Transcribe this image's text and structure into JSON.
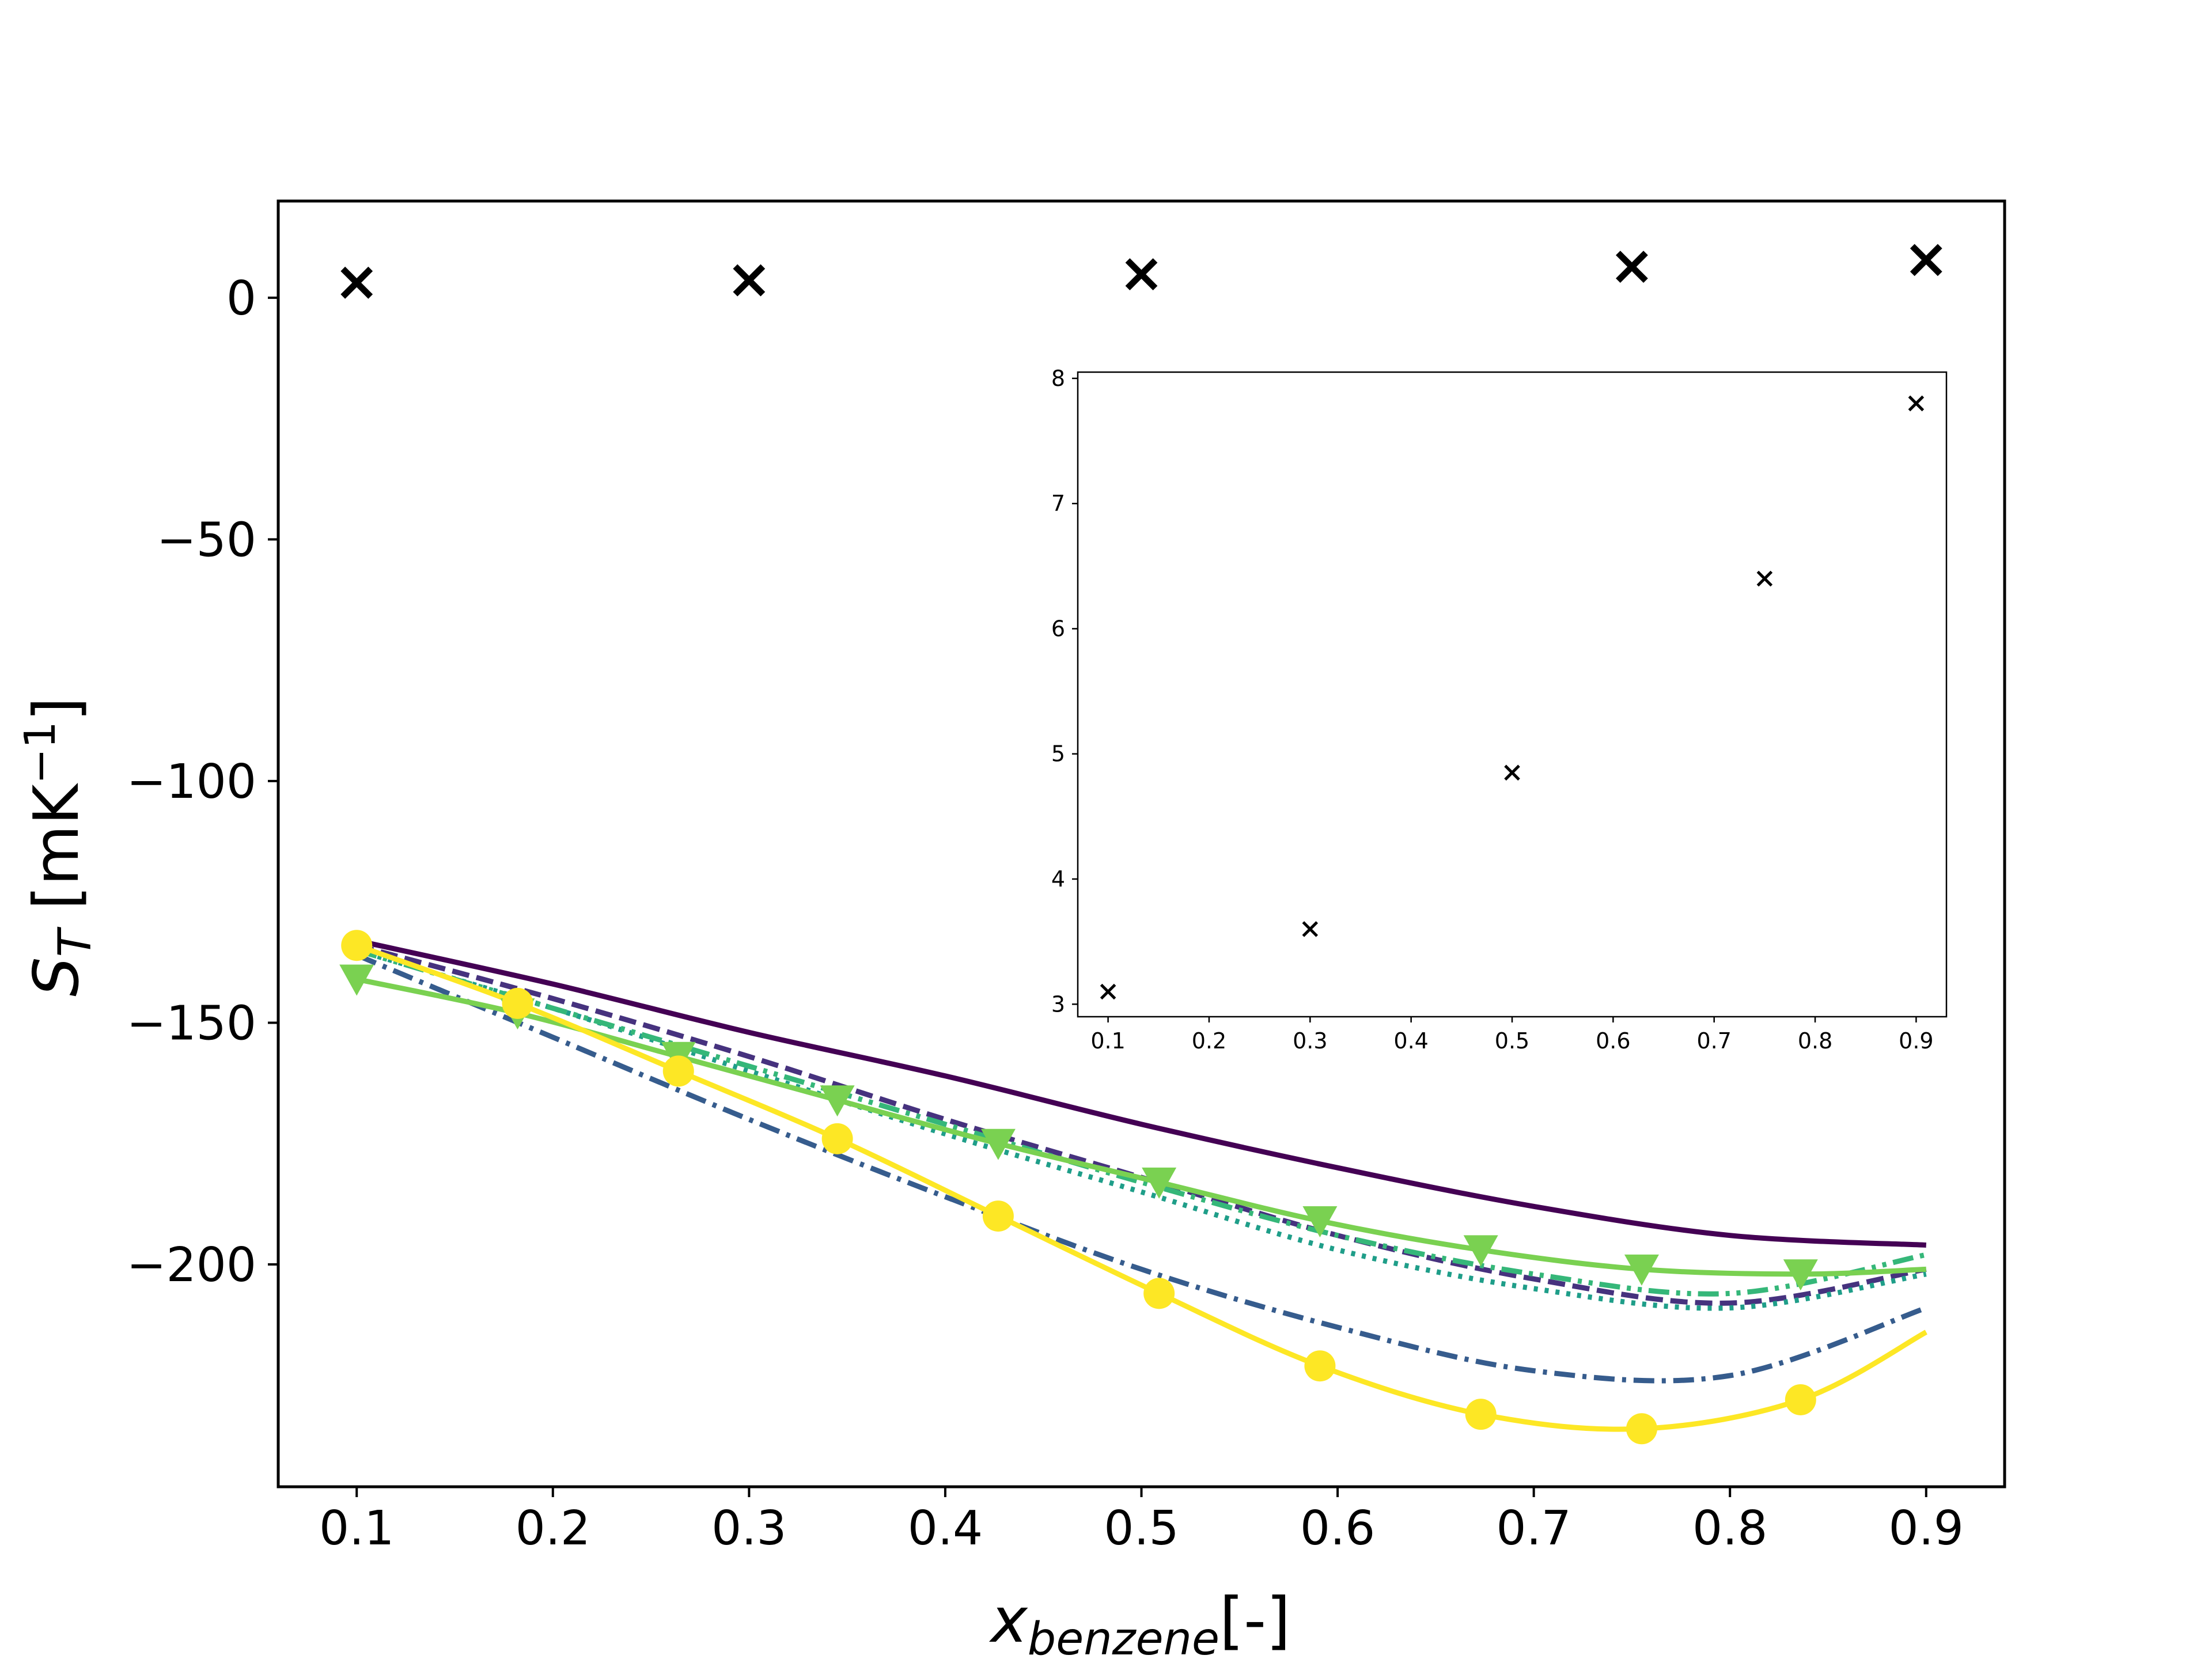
{
  "chart_data": [
    {
      "type": "line",
      "title": "",
      "xlabel_main": "x",
      "xlabel_sub": "benzene",
      "xlabel_tail": "[-]",
      "ylabel_main": "S",
      "ylabel_sub": "T",
      "ylabel_tail": " [mK",
      "ylabel_sup": "−1",
      "ylabel_close": "]",
      "xlim": [
        0.06,
        0.94
      ],
      "ylim": [
        -246,
        20
      ],
      "xticks": [
        0.1,
        0.2,
        0.3,
        0.4,
        0.5,
        0.6,
        0.7,
        0.8,
        0.9
      ],
      "xtick_labels": [
        "0.1",
        "0.2",
        "0.3",
        "0.4",
        "0.5",
        "0.6",
        "0.7",
        "0.8",
        "0.9"
      ],
      "yticks": [
        0,
        -50,
        -100,
        -150,
        -200
      ],
      "ytick_labels": [
        "0",
        "−50",
        "−100",
        "−150",
        "−200"
      ],
      "grid": false,
      "series": [
        {
          "style": "solid",
          "color": "#440154",
          "marker": "none",
          "x": [
            0.1,
            0.2,
            0.3,
            0.4,
            0.5,
            0.6,
            0.7,
            0.8,
            0.9
          ],
          "y": [
            -133,
            -142,
            -152,
            -161,
            -171,
            -180,
            -188,
            -194,
            -196
          ]
        },
        {
          "style": "dashed",
          "color": "#46327e",
          "marker": "none",
          "x": [
            0.1,
            0.2,
            0.3,
            0.4,
            0.5,
            0.6,
            0.7,
            0.8,
            0.9
          ],
          "y": [
            -134,
            -145,
            -157,
            -170,
            -182,
            -194,
            -203,
            -208,
            -201
          ]
        },
        {
          "style": "dashdot",
          "color": "#365c8d",
          "marker": "none",
          "x": [
            0.1,
            0.2,
            0.3,
            0.4,
            0.5,
            0.6,
            0.7,
            0.8,
            0.9
          ],
          "y": [
            -136,
            -153,
            -170,
            -186,
            -201,
            -213,
            -222,
            -223,
            -209
          ]
        },
        {
          "style": "dotted",
          "color": "#1f9e89",
          "marker": "none",
          "x": [
            0.1,
            0.2,
            0.3,
            0.4,
            0.5,
            0.6,
            0.7,
            0.8,
            0.9
          ],
          "y": [
            -135,
            -147,
            -160,
            -173,
            -185,
            -197,
            -205,
            -209,
            -202
          ]
        },
        {
          "style": "dashdotdot",
          "color": "#35b779",
          "marker": "none",
          "x": [
            0.1,
            0.2,
            0.3,
            0.4,
            0.5,
            0.6,
            0.7,
            0.8,
            0.9
          ],
          "y": [
            -135,
            -147,
            -159,
            -171,
            -183,
            -194,
            -202,
            -206,
            -198
          ]
        },
        {
          "style": "solid",
          "color": "#7ad151",
          "marker": "triangle-down",
          "x": [
            0.1,
            0.182,
            0.264,
            0.345,
            0.427,
            0.509,
            0.591,
            0.673,
            0.755,
            0.836,
            0.9
          ],
          "y": [
            -141,
            -148,
            -157,
            -166,
            -175,
            -183,
            -191,
            -197,
            -201,
            -202,
            -201
          ],
          "marker_x": [
            0.1,
            0.182,
            0.264,
            0.345,
            0.427,
            0.509,
            0.591,
            0.673,
            0.755,
            0.836
          ],
          "marker_y": [
            -141,
            -148,
            -157,
            -166,
            -175,
            -183,
            -191,
            -197,
            -201,
            -202
          ]
        },
        {
          "style": "solid",
          "color": "#fde725",
          "marker": "circle",
          "x": [
            0.1,
            0.182,
            0.264,
            0.345,
            0.427,
            0.509,
            0.591,
            0.673,
            0.755,
            0.836,
            0.9
          ],
          "y": [
            -134,
            -146,
            -160,
            -174,
            -190,
            -206,
            -221,
            -231,
            -234,
            -228,
            -214
          ],
          "marker_x": [
            0.1,
            0.182,
            0.264,
            0.345,
            0.427,
            0.509,
            0.591,
            0.673,
            0.755,
            0.836
          ],
          "marker_y": [
            -134,
            -146,
            -160,
            -174,
            -190,
            -206,
            -221,
            -231,
            -234,
            -228
          ]
        }
      ],
      "scatter": {
        "marker": "x",
        "color": "#000000",
        "x": [
          0.1,
          0.3,
          0.5,
          0.75,
          0.9
        ],
        "y": [
          3.1,
          3.6,
          4.85,
          6.4,
          7.8
        ]
      }
    },
    {
      "type": "scatter",
      "title": "",
      "xlim": [
        0.07,
        0.93
      ],
      "ylim": [
        2.9,
        8.05
      ],
      "xticks": [
        0.1,
        0.2,
        0.3,
        0.4,
        0.5,
        0.6,
        0.7,
        0.8,
        0.9
      ],
      "xtick_labels": [
        "0.1",
        "0.2",
        "0.3",
        "0.4",
        "0.5",
        "0.6",
        "0.7",
        "0.8",
        "0.9"
      ],
      "yticks": [
        3,
        4,
        5,
        6,
        7,
        8
      ],
      "ytick_labels": [
        "3",
        "4",
        "5",
        "6",
        "7",
        "8"
      ],
      "grid": false,
      "series": [
        {
          "marker": "x",
          "color": "#000000",
          "x": [
            0.1,
            0.3,
            0.5,
            0.75,
            0.9
          ],
          "y": [
            3.1,
            3.6,
            4.85,
            6.4,
            7.8
          ]
        }
      ]
    }
  ]
}
